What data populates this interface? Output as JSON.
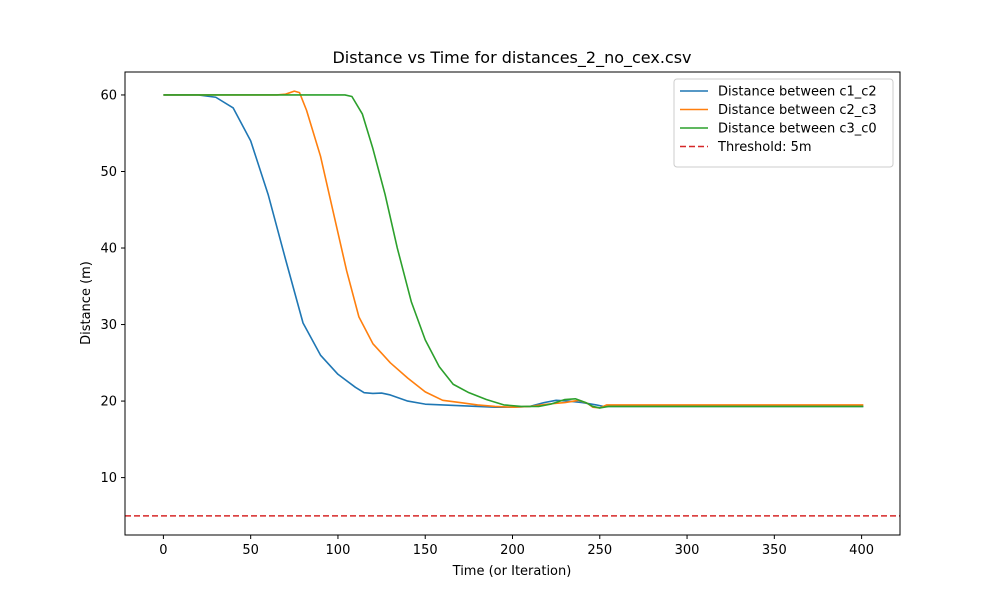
{
  "chart_data": {
    "type": "line",
    "title": "Distance vs Time for distances_2_no_cex.csv",
    "xlabel": "Time (or Iteration)",
    "ylabel": "Distance (m)",
    "xlim": [
      -22,
      422
    ],
    "ylim": [
      2.5,
      63
    ],
    "xticks": [
      0,
      50,
      100,
      150,
      200,
      250,
      300,
      350,
      400
    ],
    "yticks": [
      10,
      20,
      30,
      40,
      50,
      60
    ],
    "grid": false,
    "legend_position": "top-right",
    "series": [
      {
        "name": "Distance between c1_c2",
        "color": "#1f77b4",
        "style": "solid",
        "points": [
          [
            0,
            60
          ],
          [
            20,
            60
          ],
          [
            30,
            59.7
          ],
          [
            40,
            58.3
          ],
          [
            50,
            54
          ],
          [
            60,
            47
          ],
          [
            70,
            38.5
          ],
          [
            80,
            30.2
          ],
          [
            90,
            26
          ],
          [
            100,
            23.5
          ],
          [
            110,
            21.8
          ],
          [
            115,
            21.1
          ],
          [
            120,
            21
          ],
          [
            125,
            21.05
          ],
          [
            130,
            20.8
          ],
          [
            140,
            20
          ],
          [
            150,
            19.6
          ],
          [
            160,
            19.5
          ],
          [
            170,
            19.4
          ],
          [
            180,
            19.3
          ],
          [
            190,
            19.2
          ],
          [
            200,
            19.2
          ],
          [
            210,
            19.3
          ],
          [
            218,
            19.8
          ],
          [
            225,
            20.1
          ],
          [
            232,
            20
          ],
          [
            240,
            19.8
          ],
          [
            248,
            19.5
          ],
          [
            252,
            19.3
          ],
          [
            260,
            19.3
          ],
          [
            300,
            19.3
          ],
          [
            350,
            19.3
          ],
          [
            401,
            19.3
          ]
        ]
      },
      {
        "name": "Distance between c2_c3",
        "color": "#ff7f0e",
        "style": "solid",
        "points": [
          [
            0,
            60
          ],
          [
            50,
            60
          ],
          [
            65,
            60
          ],
          [
            70,
            60.1
          ],
          [
            75,
            60.5
          ],
          [
            78,
            60.3
          ],
          [
            82,
            58
          ],
          [
            90,
            52
          ],
          [
            98,
            44
          ],
          [
            105,
            37
          ],
          [
            112,
            31
          ],
          [
            120,
            27.5
          ],
          [
            130,
            25
          ],
          [
            140,
            23
          ],
          [
            150,
            21.2
          ],
          [
            160,
            20.1
          ],
          [
            170,
            19.8
          ],
          [
            180,
            19.5
          ],
          [
            190,
            19.3
          ],
          [
            200,
            19.2
          ],
          [
            210,
            19.3
          ],
          [
            220,
            19.6
          ],
          [
            230,
            19.8
          ],
          [
            238,
            20.1
          ],
          [
            243,
            19.7
          ],
          [
            246,
            19.2
          ],
          [
            250,
            19.1
          ],
          [
            254,
            19.5
          ],
          [
            260,
            19.5
          ],
          [
            300,
            19.5
          ],
          [
            350,
            19.5
          ],
          [
            401,
            19.5
          ]
        ]
      },
      {
        "name": "Distance between c3_c0",
        "color": "#2ca02c",
        "style": "solid",
        "points": [
          [
            0,
            60
          ],
          [
            50,
            60
          ],
          [
            100,
            60
          ],
          [
            104,
            60
          ],
          [
            108,
            59.8
          ],
          [
            114,
            57.5
          ],
          [
            120,
            53
          ],
          [
            127,
            47
          ],
          [
            134,
            40
          ],
          [
            142,
            33
          ],
          [
            150,
            28
          ],
          [
            158,
            24.5
          ],
          [
            166,
            22.2
          ],
          [
            175,
            21.1
          ],
          [
            185,
            20.2
          ],
          [
            195,
            19.5
          ],
          [
            205,
            19.3
          ],
          [
            215,
            19.3
          ],
          [
            222,
            19.6
          ],
          [
            230,
            20.2
          ],
          [
            236,
            20.3
          ],
          [
            242,
            19.8
          ],
          [
            246,
            19.3
          ],
          [
            250,
            19.1
          ],
          [
            255,
            19.3
          ],
          [
            260,
            19.3
          ],
          [
            300,
            19.3
          ],
          [
            350,
            19.3
          ],
          [
            401,
            19.3
          ]
        ]
      },
      {
        "name": "Threshold: 5m",
        "color": "#d62728",
        "style": "dashed",
        "points": [
          [
            -22,
            5
          ],
          [
            422,
            5
          ]
        ]
      }
    ]
  }
}
